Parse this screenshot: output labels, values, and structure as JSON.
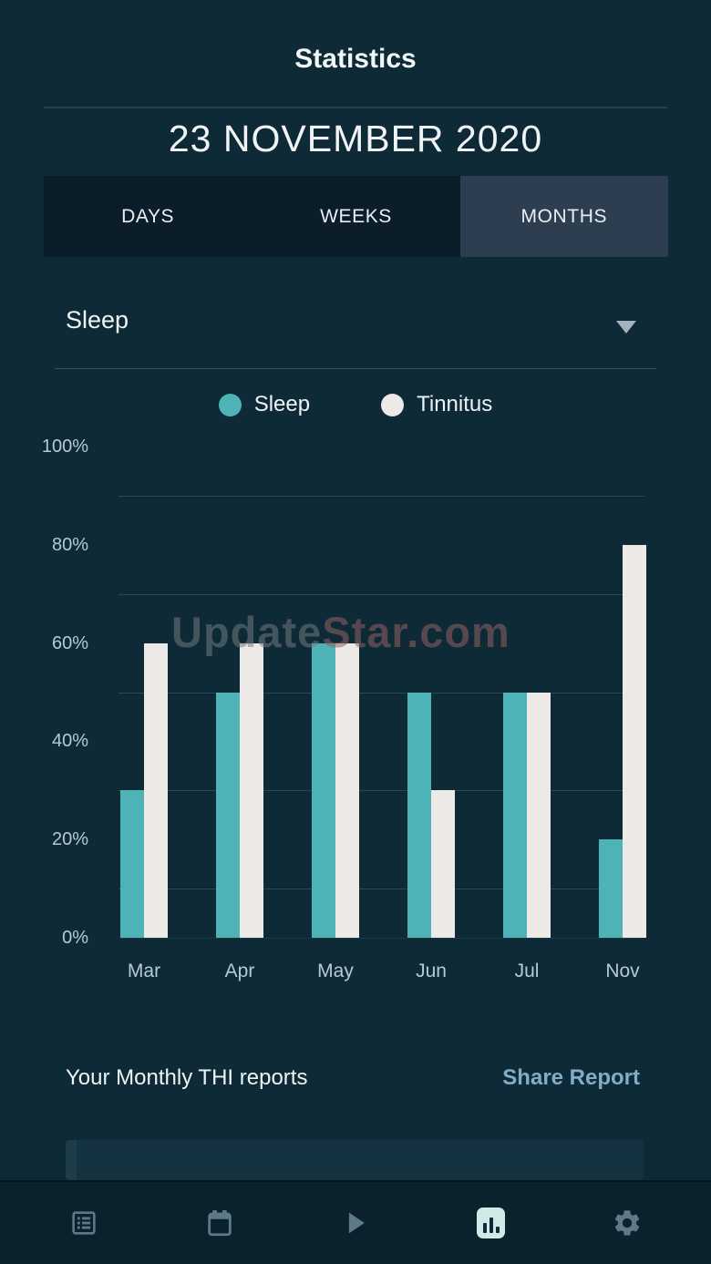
{
  "header": {
    "title": "Statistics",
    "date": "23 NOVEMBER 2020"
  },
  "tabs": {
    "items": [
      {
        "label": "DAYS",
        "active": false
      },
      {
        "label": "WEEKS",
        "active": false
      },
      {
        "label": "MONTHS",
        "active": true
      }
    ]
  },
  "filter": {
    "selected": "Sleep"
  },
  "chart_data": {
    "type": "bar",
    "title": "",
    "xlabel": "",
    "ylabel": "",
    "categories": [
      "Mar",
      "Apr",
      "May",
      "Jun",
      "Jul",
      "Nov"
    ],
    "series": [
      {
        "name": "Sleep",
        "color": "#4db3b7",
        "values": [
          30,
          50,
          60,
          50,
          50,
          20
        ]
      },
      {
        "name": "Tinnitus",
        "color": "#ece9e6",
        "values": [
          60,
          60,
          60,
          30,
          50,
          80
        ]
      }
    ],
    "ylim": [
      0,
      100
    ],
    "y_ticks": [
      {
        "label": "100%",
        "value": 100
      },
      {
        "label": "80%",
        "value": 80
      },
      {
        "label": "60%",
        "value": 60
      },
      {
        "label": "40%",
        "value": 40
      },
      {
        "label": "20%",
        "value": 20
      },
      {
        "label": "0%",
        "value": 0
      }
    ],
    "gridline_values": [
      90,
      70,
      50,
      30,
      10
    ],
    "legend_position": "top",
    "grid": true
  },
  "watermark": {
    "parts": [
      {
        "text": "Update",
        "color": "rgba(115,120,126,0.55)"
      },
      {
        "text": "Star.com",
        "color": "rgba(150,95,100,0.55)"
      }
    ]
  },
  "reports": {
    "title": "Your Monthly THI reports",
    "share_label": "Share Report",
    "share_color": "#84adc5"
  },
  "nav": {
    "items": [
      {
        "icon": "list-icon",
        "active": false
      },
      {
        "icon": "calendar-icon",
        "active": false
      },
      {
        "icon": "play-icon",
        "active": false
      },
      {
        "icon": "stats-icon",
        "active": true
      },
      {
        "icon": "gear-icon",
        "active": false
      }
    ]
  },
  "colors": {
    "background": "#0d2a36",
    "tab_inactive_bg": "#0a1d28",
    "tab_active_bg": "#2c3e4f",
    "accent_teal": "#4db3b7",
    "bar_white": "#ece9e6",
    "axis_label": "#b6cad3",
    "nav_icon": "#5c7a87",
    "nav_active_chip": "#cfe9e6"
  }
}
